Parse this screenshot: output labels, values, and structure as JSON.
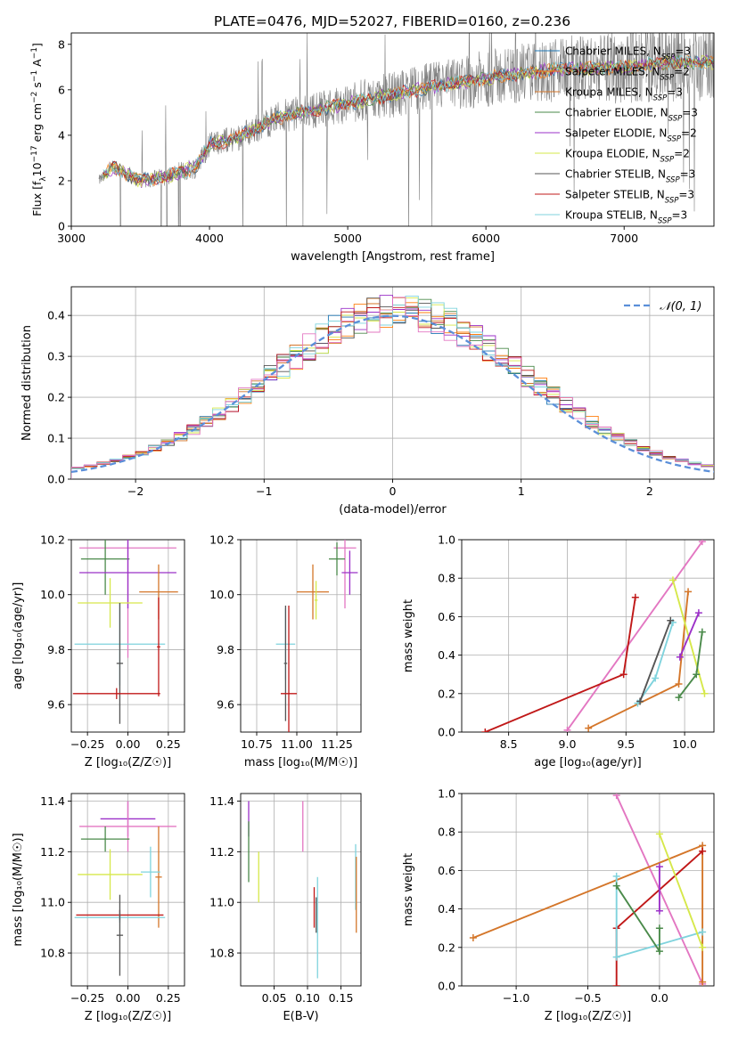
{
  "figure_title": "PLATE=0476, MJD=52027, FIBERID=0160, z=0.236",
  "colors": {
    "Chabrier MILES": "#1f77b4",
    "Salpeter MILES": "#ff7f0e",
    "Kroupa MILES": "#d4762a",
    "Chabrier ELODIE": "#4a8a4a",
    "Salpeter ELODIE": "#9b30c8",
    "Kroupa ELODIE": "#d6e84a",
    "Chabrier STELIB": "#555555",
    "Salpeter STELIB": "#c01818",
    "Kroupa STELIB": "#7fd3dd",
    "gaussian": "#5b8fd9",
    "data": "#808080",
    "pink": "#e377c2"
  },
  "chart_data": [
    {
      "type": "line",
      "panel": "spectrum",
      "title": "PLATE=0476, MJD=52027, FIBERID=0160, z=0.236",
      "xlabel": "wavelength [Angstrom, rest frame]",
      "ylabel_parts": [
        "Flux [f",
        "λ",
        "10",
        "−17",
        " erg cm",
        "−2",
        " s",
        "−1",
        " A",
        "−1",
        "]"
      ],
      "xlim": [
        3000,
        7650
      ],
      "ylim": [
        0,
        8.5
      ],
      "xticks": [
        3000,
        4000,
        5000,
        6000,
        7000
      ],
      "yticks": [
        0,
        2,
        4,
        6,
        8
      ],
      "legend": [
        {
          "name": "Chabrier MILES",
          "sub": "SSP",
          "n": "=3",
          "color_key": "Chabrier MILES"
        },
        {
          "name": "Salpeter MILES",
          "sub": "SSP",
          "n": "=2",
          "color_key": "Salpeter MILES"
        },
        {
          "name": "Kroupa MILES",
          "sub": "SSP",
          "n": "=3",
          "color_key": "Kroupa MILES"
        },
        {
          "name": "Chabrier ELODIE",
          "sub": "SSP",
          "n": "=3",
          "color_key": "Chabrier ELODIE"
        },
        {
          "name": "Salpeter ELODIE",
          "sub": "SSP",
          "n": "=2",
          "color_key": "Salpeter ELODIE"
        },
        {
          "name": "Kroupa ELODIE",
          "sub": "SSP",
          "n": "=2",
          "color_key": "Kroupa ELODIE"
        },
        {
          "name": "Chabrier STELIB",
          "sub": "SSP",
          "n": "=3",
          "color_key": "Chabrier STELIB"
        },
        {
          "name": "Salpeter STELIB",
          "sub": "SSP",
          "n": "=3",
          "color_key": "Salpeter STELIB"
        },
        {
          "name": "Kroupa STELIB",
          "sub": "SSP",
          "n": "=3",
          "color_key": "Kroupa STELIB"
        }
      ],
      "continuum_knots": [
        [
          3200,
          2.0
        ],
        [
          3300,
          2.6
        ],
        [
          3500,
          2.0
        ],
        [
          3700,
          2.2
        ],
        [
          3900,
          2.6
        ],
        [
          4000,
          3.6
        ],
        [
          4200,
          3.9
        ],
        [
          4500,
          4.8
        ],
        [
          5000,
          5.4
        ],
        [
          5500,
          6.0
        ],
        [
          6000,
          6.5
        ],
        [
          6500,
          6.9
        ],
        [
          7000,
          7.0
        ],
        [
          7300,
          7.2
        ],
        [
          7650,
          7.2
        ]
      ],
      "data_range": [
        3200,
        7650
      ]
    },
    {
      "type": "bar",
      "panel": "residuals",
      "xlabel": "(data-model)/error",
      "ylabel": "Normed distribution",
      "xlim": [
        -2.5,
        2.5
      ],
      "ylim": [
        0,
        0.47
      ],
      "xticks": [
        -2,
        -1,
        0,
        1,
        2
      ],
      "xtick_labels": [
        "−2",
        "−1",
        "0",
        "1",
        "2"
      ],
      "yticks": [
        0.0,
        0.1,
        0.2,
        0.3,
        0.4
      ],
      "ytick_labels": [
        "0.0",
        "0.1",
        "0.2",
        "0.3",
        "0.4"
      ],
      "legend": [
        {
          "name": "𝒩(0, 1)",
          "color_key": "gaussian"
        }
      ],
      "bin_width": 0.1,
      "bin_start": -2.5
    },
    {
      "type": "scatter",
      "panel": "age_vs_Z",
      "xlabel": "Z [log₁₀(Z/Z☉)]",
      "ylabel": "age  [log₁₀(age/yr)]",
      "xlim": [
        -0.35,
        0.35
      ],
      "ylim": [
        9.5,
        10.2
      ],
      "xticks": [
        -0.25,
        0,
        0.25
      ],
      "xtick_labels": [
        "−0.25",
        "0.00",
        "0.25"
      ],
      "yticks": [
        9.6,
        9.8,
        10.0,
        10.2
      ],
      "ytick_labels": [
        "9.6",
        "9.8",
        "10.0",
        "10.2"
      ],
      "points": [
        {
          "c": "pink",
          "x": 0.0,
          "xerr": 0.3,
          "y": 10.17,
          "yerr": 0.4
        },
        {
          "c": "Chabrier ELODIE",
          "x": -0.14,
          "xerr": 0.15,
          "y": 10.13,
          "yerr": 0.13
        },
        {
          "c": "Salpeter ELODIE",
          "x": 0.0,
          "xerr": 0.3,
          "y": 10.08,
          "yerr": 0.13
        },
        {
          "c": "Kroupa MILES",
          "x": 0.19,
          "xerr": 0.12,
          "y": 10.01,
          "yerr": 0.1
        },
        {
          "c": "Kroupa ELODIE",
          "x": -0.11,
          "xerr": 0.2,
          "y": 9.97,
          "yerr": 0.09
        },
        {
          "c": "Kroupa STELIB",
          "x": -0.05,
          "xerr": 0.28,
          "y": 9.82,
          "yerr": 0.15
        },
        {
          "c": "Chabrier STELIB",
          "x": -0.05,
          "xerr": 0.02,
          "y": 9.75,
          "yerr": 0.22
        },
        {
          "c": "Salpeter STELIB",
          "x": -0.07,
          "xerr": 0.27,
          "y": 9.64,
          "yerr": 0.02
        },
        {
          "c": "Salpeter STELIB",
          "x": 0.19,
          "xerr": 0.01,
          "y": 9.81,
          "yerr": 0.18
        }
      ]
    },
    {
      "type": "scatter",
      "panel": "age_vs_mass",
      "xlabel": "mass [log₁₀(M/M☉)]",
      "ylabel": "",
      "xlim": [
        10.65,
        11.4
      ],
      "ylim": [
        9.5,
        10.2
      ],
      "xticks": [
        10.75,
        11.0,
        11.25
      ],
      "xtick_labels": [
        "10.75",
        "11.00",
        "11.25"
      ],
      "yticks": [
        9.6,
        9.8,
        10.0,
        10.2
      ],
      "ytick_labels": [
        "9.6",
        "9.8",
        "10.0",
        "10.2"
      ],
      "points": [
        {
          "c": "pink",
          "x": 11.3,
          "xerr": 0.07,
          "y": 10.17,
          "yerr": 0.22
        },
        {
          "c": "Chabrier ELODIE",
          "x": 11.25,
          "xerr": 0.05,
          "y": 10.13,
          "yerr": 0.06
        },
        {
          "c": "Salpeter ELODIE",
          "x": 11.33,
          "xerr": 0.05,
          "y": 10.08,
          "yerr": 0.08
        },
        {
          "c": "Kroupa MILES",
          "x": 11.1,
          "xerr": 0.1,
          "y": 10.01,
          "yerr": 0.1
        },
        {
          "c": "Kroupa ELODIE",
          "x": 11.12,
          "xerr": 0.01,
          "y": 9.98,
          "yerr": 0.07
        },
        {
          "c": "Kroupa STELIB",
          "x": 10.93,
          "xerr": 0.06,
          "y": 9.82,
          "yerr": 0.13
        },
        {
          "c": "Chabrier STELIB",
          "x": 10.93,
          "xerr": 0.01,
          "y": 9.75,
          "yerr": 0.21
        },
        {
          "c": "Salpeter STELIB",
          "x": 10.95,
          "xerr": 0.05,
          "y": 9.64,
          "yerr": 0.32
        }
      ]
    },
    {
      "type": "line",
      "panel": "massweight_vs_age",
      "xlabel": "age  [log₁₀(age/yr)]",
      "ylabel": "mass weight",
      "xlim": [
        8.1,
        10.25
      ],
      "ylim": [
        0,
        1.0
      ],
      "xticks": [
        8.5,
        9.0,
        9.5,
        10.0
      ],
      "xtick_labels": [
        "8.5",
        "9.0",
        "9.5",
        "10.0"
      ],
      "yticks": [
        0.0,
        0.2,
        0.4,
        0.6,
        0.8,
        1.0
      ],
      "ytick_labels": [
        "0.0",
        "0.2",
        "0.4",
        "0.6",
        "0.8",
        "1.0"
      ],
      "series": [
        {
          "c": "pink",
          "points": [
            [
              9.0,
              0.01
            ],
            [
              10.15,
              0.99
            ]
          ]
        },
        {
          "c": "Salpeter STELIB",
          "points": [
            [
              8.3,
              0.0
            ],
            [
              9.48,
              0.3
            ],
            [
              9.58,
              0.7
            ]
          ]
        },
        {
          "c": "Kroupa MILES",
          "points": [
            [
              9.18,
              0.02
            ],
            [
              9.95,
              0.25
            ],
            [
              10.03,
              0.73
            ]
          ]
        },
        {
          "c": "Kroupa STELIB",
          "points": [
            [
              9.6,
              0.15
            ],
            [
              9.75,
              0.28
            ],
            [
              9.9,
              0.57
            ]
          ]
        },
        {
          "c": "Chabrier STELIB",
          "points": [
            [
              9.62,
              0.16
            ],
            [
              9.88,
              0.58
            ]
          ]
        },
        {
          "c": "Kroupa ELODIE",
          "points": [
            [
              9.9,
              0.79
            ],
            [
              10.17,
              0.2
            ]
          ]
        },
        {
          "c": "Salpeter ELODIE",
          "points": [
            [
              9.96,
              0.39
            ],
            [
              10.12,
              0.62
            ]
          ]
        },
        {
          "c": "Chabrier ELODIE",
          "points": [
            [
              9.95,
              0.18
            ],
            [
              10.1,
              0.3
            ],
            [
              10.15,
              0.52
            ]
          ]
        }
      ]
    },
    {
      "type": "scatter",
      "panel": "mass_vs_Z",
      "xlabel": "Z [log₁₀(Z/Z☉)]",
      "ylabel": "mass [log₁₀(M/M☉)]",
      "xlim": [
        -0.35,
        0.35
      ],
      "ylim": [
        10.67,
        11.43
      ],
      "xticks": [
        -0.25,
        0,
        0.25
      ],
      "xtick_labels": [
        "−0.25",
        "0.00",
        "0.25"
      ],
      "yticks": [
        10.8,
        11.0,
        11.2,
        11.4
      ],
      "ytick_labels": [
        "10.8",
        "11.0",
        "11.2",
        "11.4"
      ],
      "points": [
        {
          "c": "Salpeter ELODIE",
          "x": 0.0,
          "xerr": 0.17,
          "y": 11.33,
          "yerr": 0.07
        },
        {
          "c": "pink",
          "x": 0.0,
          "xerr": 0.3,
          "y": 11.3,
          "yerr": 0.1
        },
        {
          "c": "Chabrier ELODIE",
          "x": -0.14,
          "xerr": 0.15,
          "y": 11.25,
          "yerr": 0.05
        },
        {
          "c": "Kroupa ELODIE",
          "x": -0.11,
          "xerr": 0.2,
          "y": 11.11,
          "yerr": 0.1
        },
        {
          "c": "Kroupa MILES",
          "x": 0.19,
          "xerr": 0.02,
          "y": 11.1,
          "yerr": 0.2
        },
        {
          "c": "Kroupa STELIB",
          "x": 0.14,
          "xerr": 0.06,
          "y": 11.12,
          "yerr": 0.1
        },
        {
          "c": "Salpeter STELIB",
          "x": -0.05,
          "xerr": 0.27,
          "y": 10.95,
          "yerr": 0.02
        },
        {
          "c": "Kroupa STELIB",
          "x": -0.05,
          "xerr": 0.28,
          "y": 10.94,
          "yerr": 0.02
        },
        {
          "c": "Chabrier STELIB",
          "x": -0.05,
          "xerr": 0.02,
          "y": 10.87,
          "yerr": 0.16
        }
      ]
    },
    {
      "type": "scatter",
      "panel": "mass_vs_EBV",
      "xlabel": "E(B-V)",
      "ylabel": "",
      "xlim": [
        0.0,
        0.18
      ],
      "ylim": [
        10.67,
        11.43
      ],
      "xticks": [
        0.05,
        0.1,
        0.15
      ],
      "xtick_labels": [
        "0.05",
        "0.10",
        "0.15"
      ],
      "yticks": [
        10.8,
        11.0,
        11.2,
        11.4
      ],
      "ytick_labels": [
        "10.8",
        "11.0",
        "11.2",
        "11.4"
      ],
      "points": [
        {
          "c": "Salpeter ELODIE",
          "x": 0.012,
          "xerr": 0,
          "y": 11.33,
          "yerr": 0.07
        },
        {
          "c": "Chabrier ELODIE",
          "x": 0.012,
          "xerr": 0,
          "y": 11.2,
          "yerr": 0.12
        },
        {
          "c": "Kroupa ELODIE",
          "x": 0.027,
          "xerr": 0,
          "y": 11.1,
          "yerr": 0.1
        },
        {
          "c": "pink",
          "x": 0.093,
          "xerr": 0,
          "y": 11.3,
          "yerr": 0.1
        },
        {
          "c": "Salpeter STELIB",
          "x": 0.11,
          "xerr": 0,
          "y": 10.98,
          "yerr": 0.08
        },
        {
          "c": "Chabrier STELIB",
          "x": 0.113,
          "xerr": 0,
          "y": 10.95,
          "yerr": 0.07
        },
        {
          "c": "Kroupa STELIB",
          "x": 0.115,
          "xerr": 0,
          "y": 10.9,
          "yerr": 0.2
        },
        {
          "c": "Kroupa STELIB",
          "x": 0.172,
          "xerr": 0,
          "y": 11.1,
          "yerr": 0.13
        },
        {
          "c": "Kroupa MILES",
          "x": 0.173,
          "xerr": 0,
          "y": 11.03,
          "yerr": 0.15
        }
      ]
    },
    {
      "type": "line",
      "panel": "massweight_vs_Z",
      "xlabel": "Z [log₁₀(Z/Z☉)]",
      "ylabel": "mass weight",
      "xlim": [
        -1.38,
        0.38
      ],
      "ylim": [
        0,
        1.0
      ],
      "xticks": [
        -1.0,
        -0.5,
        0.0
      ],
      "xtick_labels": [
        "−1.0",
        "−0.5",
        "0.0"
      ],
      "yticks": [
        0.0,
        0.2,
        0.4,
        0.6,
        0.8,
        1.0
      ],
      "ytick_labels": [
        "0.0",
        "0.2",
        "0.4",
        "0.6",
        "0.8",
        "1.0"
      ],
      "series": [
        {
          "c": "pink",
          "points": [
            [
              -0.3,
              0.99
            ],
            [
              0.3,
              0.01
            ]
          ]
        },
        {
          "c": "Kroupa MILES",
          "points": [
            [
              -1.3,
              0.25
            ],
            [
              0.3,
              0.73
            ],
            [
              0.3,
              0.02
            ]
          ]
        },
        {
          "c": "Salpeter STELIB",
          "points": [
            [
              -0.3,
              0.0
            ],
            [
              -0.3,
              0.3
            ],
            [
              0.3,
              0.7
            ]
          ]
        },
        {
          "c": "Kroupa STELIB",
          "points": [
            [
              -0.3,
              0.57
            ],
            [
              -0.3,
              0.15
            ],
            [
              0.3,
              0.28
            ]
          ]
        },
        {
          "c": "Chabrier ELODIE",
          "points": [
            [
              -0.3,
              0.52
            ],
            [
              0.0,
              0.18
            ],
            [
              0.0,
              0.3
            ]
          ]
        },
        {
          "c": "Kroupa ELODIE",
          "points": [
            [
              0.0,
              0.79
            ],
            [
              0.3,
              0.2
            ]
          ]
        },
        {
          "c": "Salpeter ELODIE",
          "points": [
            [
              0.0,
              0.39
            ],
            [
              0.0,
              0.62
            ]
          ]
        }
      ]
    }
  ]
}
